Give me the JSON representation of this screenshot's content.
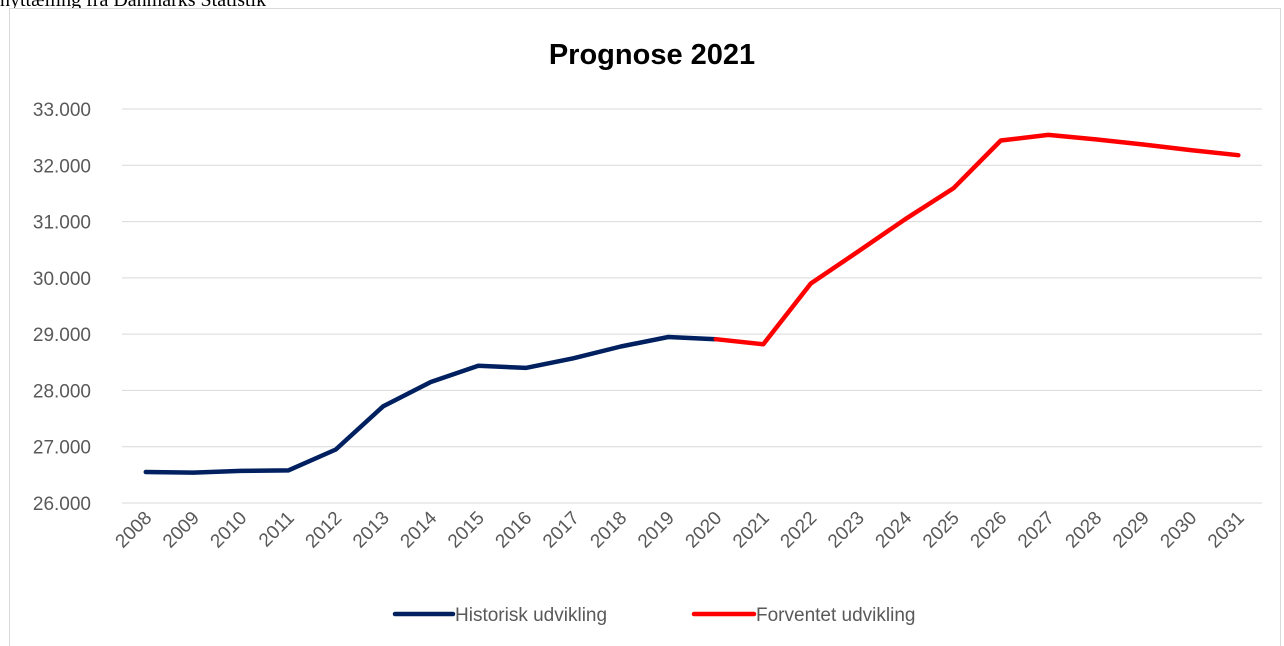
{
  "caption": "nyttælling fra Danmarks Statistik",
  "chart_data": {
    "type": "line",
    "title": "Prognose 2021",
    "xlabel": "",
    "ylabel": "",
    "categories": [
      "2008",
      "2009",
      "2010",
      "2011",
      "2012",
      "2013",
      "2014",
      "2015",
      "2016",
      "2017",
      "2018",
      "2019",
      "2020",
      "2021",
      "2022",
      "2023",
      "2024",
      "2025",
      "2026",
      "2027",
      "2028",
      "2029",
      "2030",
      "2031"
    ],
    "ylim": [
      26000,
      33000
    ],
    "yticks": [
      26000,
      27000,
      28000,
      29000,
      30000,
      31000,
      32000,
      33000
    ],
    "ytick_labels": [
      "26.000",
      "27.000",
      "28.000",
      "29.000",
      "30.000",
      "31.000",
      "32.000",
      "33.000"
    ],
    "grid": true,
    "legend_position": "bottom",
    "series": [
      {
        "name": "Historisk udvikling",
        "color": "#002060",
        "values": [
          26550,
          26540,
          26570,
          26580,
          26950,
          27720,
          28150,
          28440,
          28400,
          28570,
          28780,
          28950,
          28910,
          null,
          null,
          null,
          null,
          null,
          null,
          null,
          null,
          null,
          null,
          null
        ]
      },
      {
        "name": "Forventet udvikling",
        "color": "#ff0000",
        "values": [
          null,
          null,
          null,
          null,
          null,
          null,
          null,
          null,
          null,
          null,
          null,
          null,
          28910,
          28820,
          29900,
          30470,
          31050,
          31590,
          32440,
          32540,
          32460,
          32370,
          32270,
          32180
        ]
      }
    ]
  }
}
